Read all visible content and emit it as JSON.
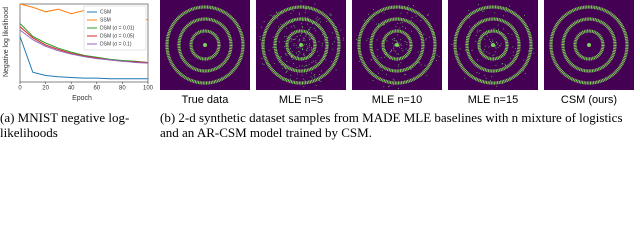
{
  "chart_data": {
    "type": "line",
    "xlabel": "Epoch",
    "ylabel": "Negative log likelihood",
    "x": [
      0,
      10,
      20,
      30,
      40,
      50,
      60,
      70,
      80,
      90,
      100
    ],
    "xlim": [
      0,
      100
    ],
    "xticks": [
      0,
      20,
      40,
      60,
      80,
      100
    ],
    "ylim": [
      80,
      200
    ],
    "legend": "upper right",
    "series": [
      {
        "name": "CSM",
        "color": "#1f77b4",
        "values": [
          150,
          95,
          90,
          88,
          87,
          86,
          86,
          85,
          85,
          85,
          85
        ]
      },
      {
        "name": "SSM",
        "color": "#ff7f0e",
        "values": [
          200,
          195,
          188,
          192,
          185,
          190,
          183,
          188,
          182,
          186,
          175
        ]
      },
      {
        "name": "DSM (σ = 0.01)",
        "color": "#2ca02c",
        "values": [
          170,
          150,
          140,
          132,
          126,
          121,
          118,
          115,
          113,
          112,
          110
        ]
      },
      {
        "name": "DSM (σ = 0.05)",
        "color": "#d62728",
        "values": [
          165,
          148,
          137,
          130,
          124,
          120,
          117,
          114,
          112,
          111,
          110
        ]
      },
      {
        "name": "DSM (σ = 0.1)",
        "color": "#9467bd",
        "values": [
          160,
          145,
          135,
          128,
          123,
          119,
          116,
          114,
          112,
          110,
          109
        ]
      }
    ]
  },
  "panels": [
    {
      "label": "True data"
    },
    {
      "label": "MLE n=5"
    },
    {
      "label": "MLE n=10"
    },
    {
      "label": "MLE n=15"
    },
    {
      "label": "CSM (ours)"
    }
  ],
  "captions": {
    "a": "(a) MNIST negative log-likelihoods",
    "b": "(b) 2-d synthetic dataset samples from MADE MLE baselines with n mixture of logistics and an AR-CSM model trained by CSM."
  }
}
